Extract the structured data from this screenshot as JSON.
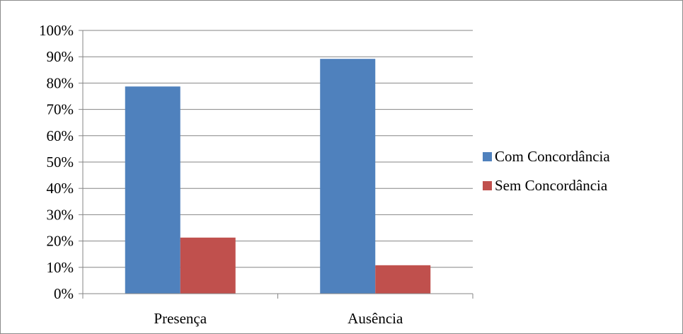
{
  "chart_data": {
    "type": "bar",
    "title": "",
    "xlabel": "",
    "ylabel": "",
    "categories": [
      "Presença",
      "Ausência"
    ],
    "series": [
      {
        "name": "Com Concordância",
        "color": "#4F81BD",
        "values": [
          0.787,
          0.892
        ]
      },
      {
        "name": "Sem Concordância",
        "color": "#C0504D",
        "values": [
          0.213,
          0.108
        ]
      }
    ],
    "ylim": [
      0,
      1
    ],
    "yticks": [
      0,
      0.1,
      0.2,
      0.3,
      0.4,
      0.5,
      0.6,
      0.7,
      0.8,
      0.9,
      1.0
    ],
    "ytick_labels": [
      "0%",
      "10%",
      "20%",
      "30%",
      "40%",
      "50%",
      "60%",
      "70%",
      "80%",
      "90%",
      "100%"
    ],
    "grid": true,
    "legend_position": "right"
  }
}
